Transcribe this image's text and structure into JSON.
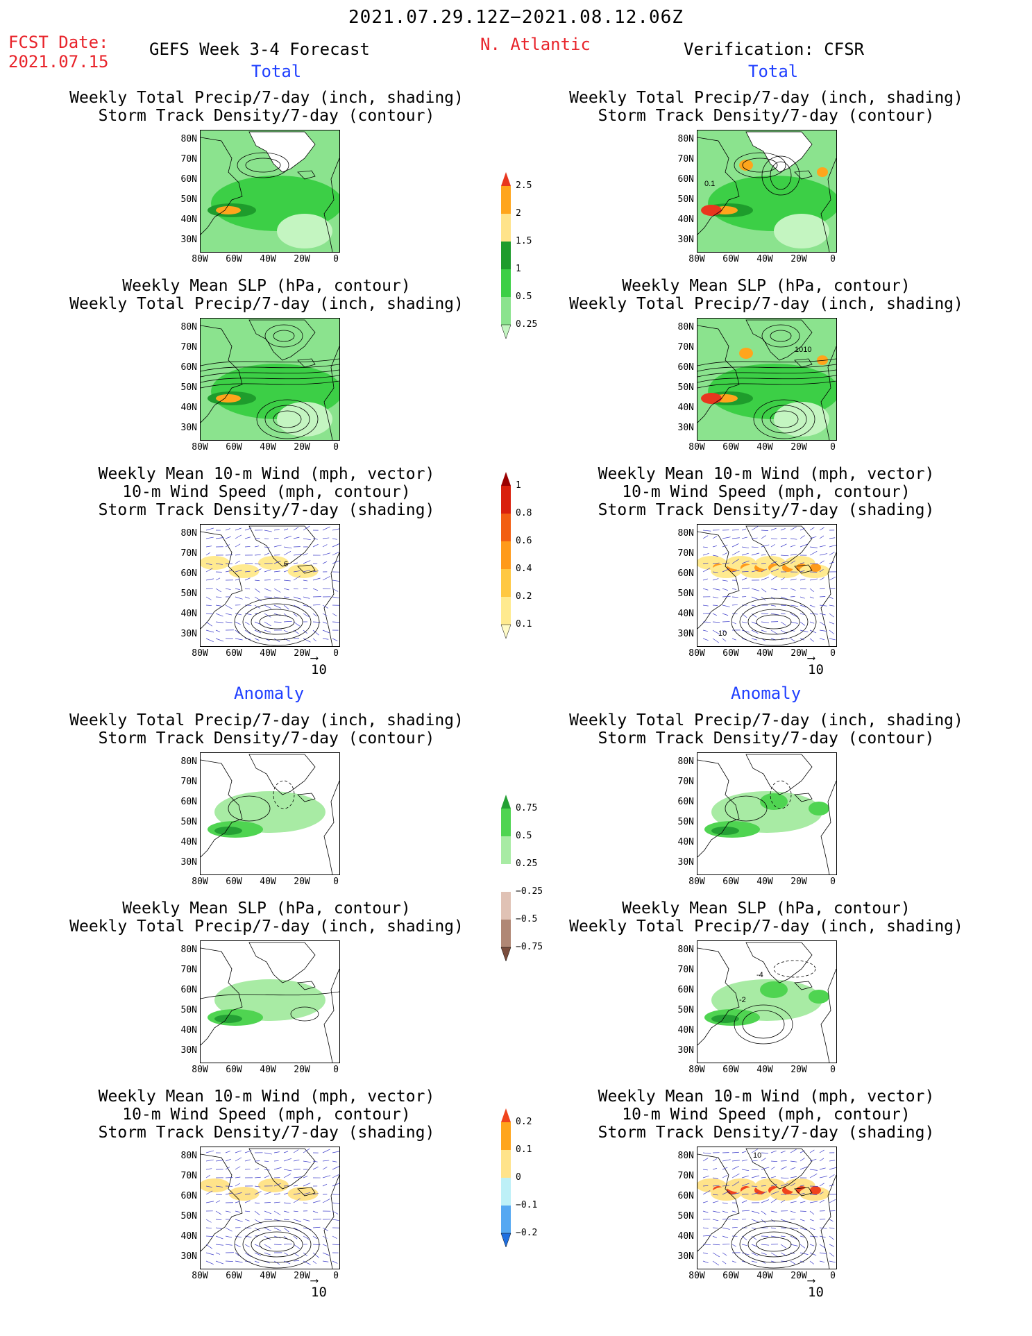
{
  "header": {
    "date_range": "2021.07.29.12Z−2021.08.12.06Z",
    "fcst_label": "FCST Date:",
    "fcst_date": "2021.07.15",
    "left_title": "GEFS Week 3-4 Forecast",
    "region": "N. Atlantic",
    "right_title": "Verification: CFSR"
  },
  "sections": {
    "total": "Total",
    "anomaly": "Anomaly"
  },
  "panel_titles": {
    "precip_storm": [
      "Weekly Total Precip/7-day (inch, shading)",
      "Storm Track Density/7-day (contour)"
    ],
    "slp_precip": [
      "Weekly Mean SLP (hPa, contour)",
      "Weekly Total Precip/7-day (inch, shading)"
    ],
    "wind_storm": [
      "Weekly Mean 10-m Wind (mph, vector)",
      "10-m Wind Speed (mph, contour)",
      "Storm Track Density/7-day (shading)"
    ]
  },
  "axes": {
    "lat_ticks": [
      "80N",
      "70N",
      "60N",
      "50N",
      "40N",
      "30N"
    ],
    "lon_ticks": [
      "80W",
      "60W",
      "40W",
      "20W",
      "0"
    ]
  },
  "reference_vector": "10",
  "contour_labels": {
    "storm_total_right": "0.1",
    "slp_total_right": "1010",
    "slp_anom_right_a": "-4",
    "slp_anom_right_b": "-2",
    "wind_total_right": "10",
    "wind_total_left": "6",
    "wind_anom_right": "10"
  },
  "colorbars": {
    "precip_total": {
      "labels": [
        "2.5",
        "2",
        "1.5",
        "1",
        "0.5",
        "0.25"
      ],
      "colors": [
        "#e8361e",
        "#ffa51c",
        "#ffe38a",
        "#1e9c2c",
        "#3ccf46",
        "#8be38e",
        "#c4f5c1"
      ]
    },
    "storm_total": {
      "labels": [
        "1",
        "0.8",
        "0.6",
        "0.4",
        "0.2",
        "0.1"
      ],
      "colors": [
        "#9a0000",
        "#d9200d",
        "#f25e12",
        "#ff9a1a",
        "#ffc842",
        "#ffea8f",
        "#fffbc7"
      ]
    },
    "precip_anom": {
      "labels": [
        "0.75",
        "0.5",
        "0.25",
        "−0.25",
        "−0.5",
        "−0.75"
      ],
      "colors": [
        "#24a034",
        "#4fd451",
        "#a8eba4",
        "#ffffff",
        "#e0c2b5",
        "#b08775",
        "#7a4d3d"
      ]
    },
    "storm_anom": {
      "labels": [
        "0.2",
        "0.1",
        "0",
        "−0.1",
        "−0.2"
      ],
      "colors": [
        "#f0441d",
        "#ffa51c",
        "#ffe38a",
        "#bdf0f7",
        "#55a8f2",
        "#1f6fe0"
      ]
    }
  }
}
